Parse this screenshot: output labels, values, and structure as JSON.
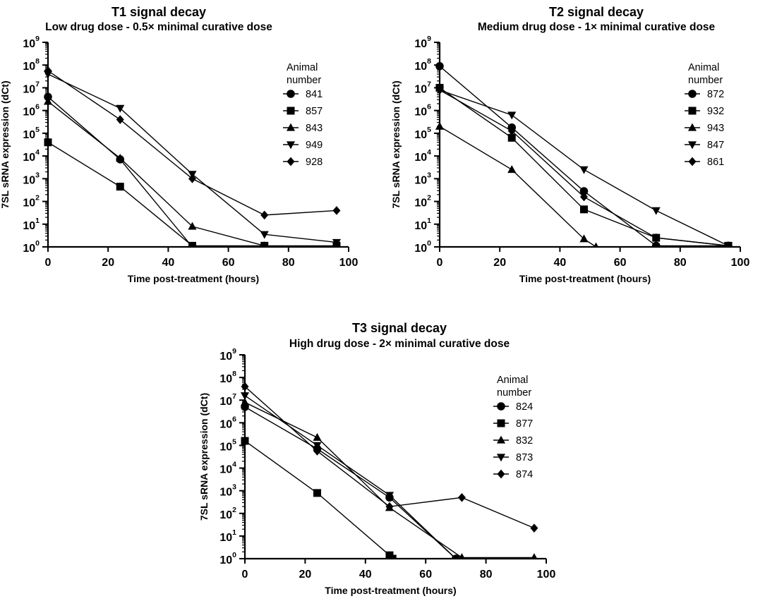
{
  "chart_data": [
    {
      "type": "line",
      "title": "T1 signal decay",
      "subtitle": "Low drug dose - 0.5× minimal curative dose",
      "xlabel": "Time post-treatment (hours)",
      "ylabel": "7SL sRNA expression (dCt)",
      "xlim": [
        0,
        100
      ],
      "ylim_log10": [
        0,
        9
      ],
      "yscale": "log10",
      "x_ticks": [
        0,
        20,
        40,
        60,
        80,
        100
      ],
      "y_tick_base": "10",
      "y_tick_exponents": [
        "0",
        "1",
        "2",
        "3",
        "4",
        "5",
        "6",
        "7",
        "8",
        "9"
      ],
      "legend_title": [
        "Animal",
        "number"
      ],
      "series": [
        {
          "name": "841",
          "marker": "circle",
          "x": [
            0,
            24,
            48
          ],
          "log10_y": [
            6.6,
            3.85,
            0
          ]
        },
        {
          "name": "857",
          "marker": "square",
          "x": [
            0,
            24,
            48,
            72,
            96
          ],
          "log10_y": [
            4.6,
            2.65,
            0.05,
            0.05,
            0.05
          ]
        },
        {
          "name": "843",
          "marker": "triangle-up",
          "x": [
            0,
            24,
            48,
            72
          ],
          "log10_y": [
            6.4,
            3.9,
            0.9,
            0.05
          ]
        },
        {
          "name": "949",
          "marker": "triangle-down",
          "x": [
            0,
            24,
            48,
            72,
            96
          ],
          "log10_y": [
            7.6,
            6.1,
            3.2,
            0.55,
            0.2
          ]
        },
        {
          "name": "928",
          "marker": "diamond",
          "x": [
            0,
            24,
            48,
            72,
            96
          ],
          "log10_y": [
            7.75,
            5.6,
            3.0,
            1.4,
            1.6
          ]
        }
      ]
    },
    {
      "type": "line",
      "title": "T2 signal decay",
      "subtitle": "Medium drug dose - 1× minimal curative dose",
      "xlabel": "Time post-treatment (hours)",
      "ylabel": "7SL sRNA expression (dCt)",
      "xlim": [
        0,
        100
      ],
      "ylim_log10": [
        0,
        9
      ],
      "yscale": "log10",
      "x_ticks": [
        0,
        20,
        40,
        60,
        80,
        100
      ],
      "y_tick_base": "10",
      "y_tick_exponents": [
        "0",
        "1",
        "2",
        "3",
        "4",
        "5",
        "6",
        "7",
        "8",
        "9"
      ],
      "legend_title": [
        "Animal",
        "number"
      ],
      "series": [
        {
          "name": "872",
          "marker": "circle",
          "x": [
            0,
            24,
            48,
            72,
            96
          ],
          "log10_y": [
            7.95,
            5.25,
            2.45,
            0.05,
            0.05
          ]
        },
        {
          "name": "932",
          "marker": "square",
          "x": [
            0,
            24,
            48,
            72,
            96
          ],
          "log10_y": [
            7.0,
            4.8,
            1.65,
            0.4,
            0.05
          ]
        },
        {
          "name": "943",
          "marker": "triangle-up",
          "x": [
            0,
            24,
            48,
            52
          ],
          "log10_y": [
            5.3,
            3.4,
            0.35,
            0
          ]
        },
        {
          "name": "847",
          "marker": "triangle-down",
          "x": [
            0,
            24,
            48,
            72,
            96
          ],
          "log10_y": [
            6.9,
            5.8,
            3.4,
            1.6,
            0.05
          ]
        },
        {
          "name": "861",
          "marker": "diamond",
          "x": [
            0,
            24,
            48,
            72,
            96
          ],
          "log10_y": [
            6.9,
            5.1,
            2.2,
            0.4,
            0.05
          ]
        }
      ]
    },
    {
      "type": "line",
      "title": "T3 signal decay",
      "subtitle": "High drug dose - 2× minimal curative dose",
      "xlabel": "Time post-treatment (hours)",
      "ylabel": "7SL sRNA expression (dCt)",
      "xlim": [
        0,
        100
      ],
      "ylim_log10": [
        0,
        9
      ],
      "yscale": "log10",
      "x_ticks": [
        0,
        20,
        40,
        60,
        80,
        100
      ],
      "y_tick_base": "10",
      "y_tick_exponents": [
        "0",
        "1",
        "2",
        "3",
        "4",
        "5",
        "6",
        "7",
        "8",
        "9"
      ],
      "legend_title": [
        "Animal",
        "number"
      ],
      "series": [
        {
          "name": "824",
          "marker": "circle",
          "x": [
            0,
            24,
            48,
            70
          ],
          "log10_y": [
            6.7,
            4.85,
            2.7,
            0
          ]
        },
        {
          "name": "877",
          "marker": "square",
          "x": [
            0,
            24,
            48,
            49
          ],
          "log10_y": [
            5.2,
            2.9,
            0.15,
            0
          ]
        },
        {
          "name": "832",
          "marker": "triangle-up",
          "x": [
            0,
            24,
            48,
            72,
            96
          ],
          "log10_y": [
            6.9,
            5.35,
            2.25,
            0.05,
            0.05
          ]
        },
        {
          "name": "873",
          "marker": "triangle-down",
          "x": [
            0,
            24,
            48,
            70
          ],
          "log10_y": [
            7.2,
            5.0,
            2.8,
            0
          ]
        },
        {
          "name": "874",
          "marker": "diamond",
          "x": [
            0,
            24,
            48,
            72,
            96
          ],
          "log10_y": [
            7.6,
            4.75,
            2.3,
            2.7,
            1.35
          ]
        }
      ]
    }
  ]
}
